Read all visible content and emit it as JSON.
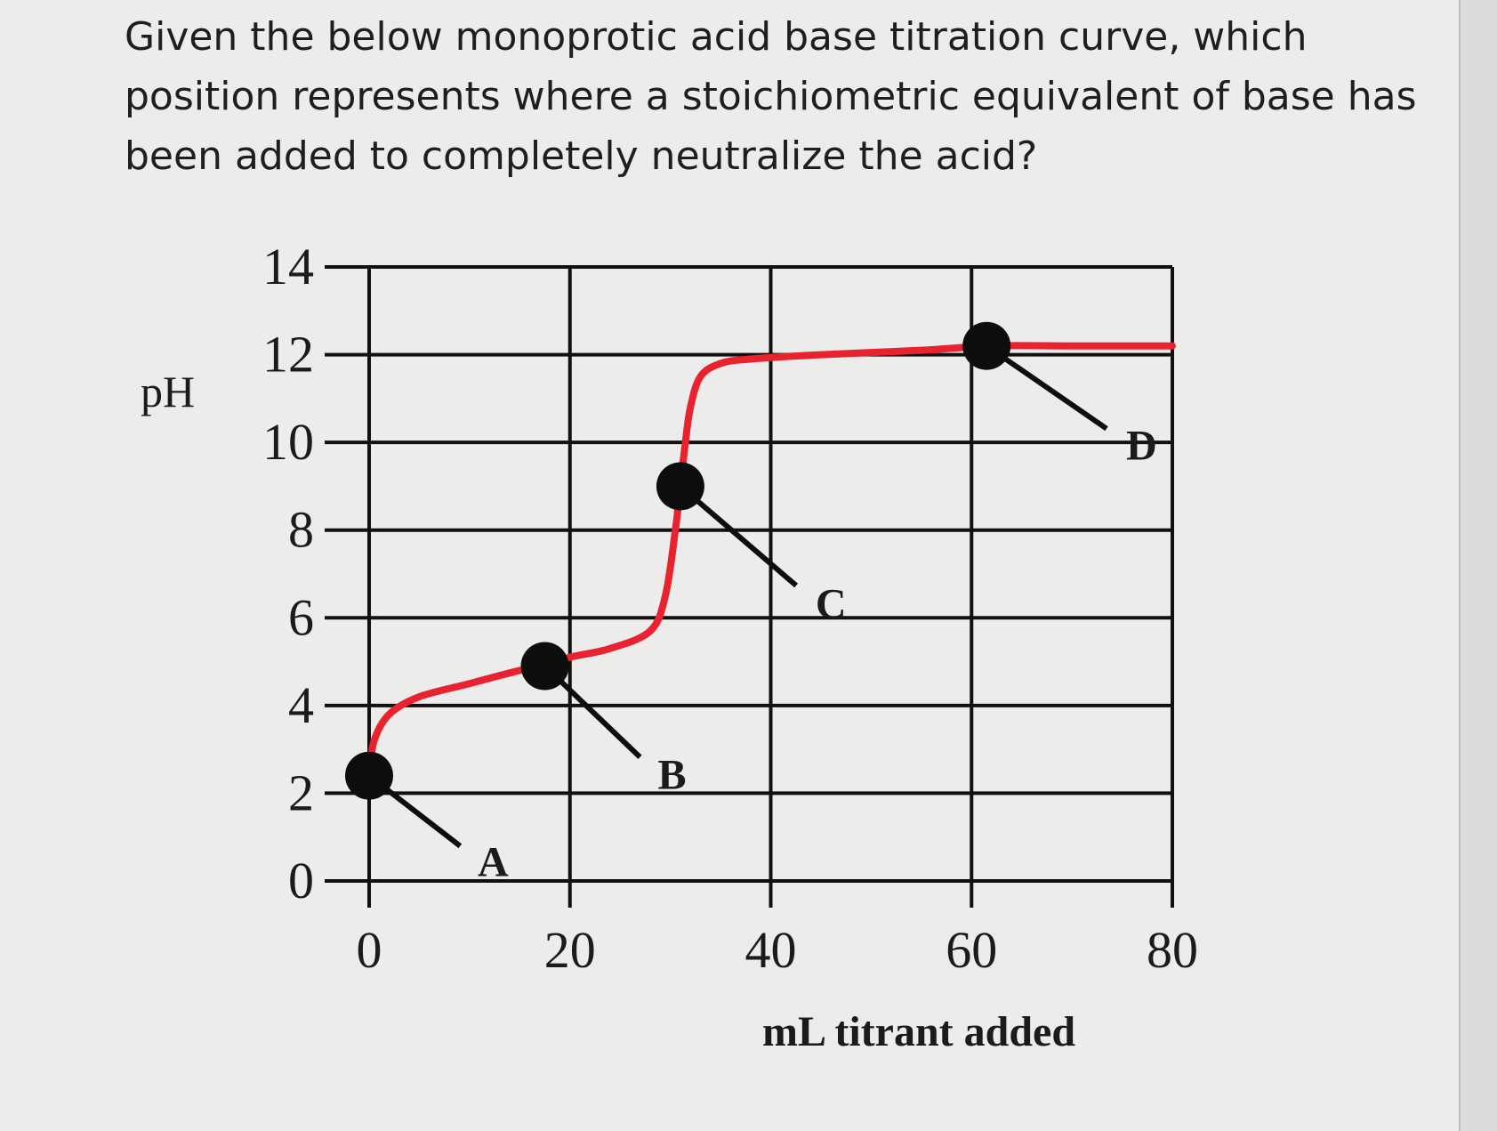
{
  "question": "Given the below monoprotic acid base titration curve, which position represents where a stoichiometric equivalent of base has been added to completely neutralize the acid?",
  "colors": {
    "curve": "#e8232f",
    "grid": "#111111",
    "point": "#0d0d0d",
    "background": "#ececeb"
  },
  "chart_data": {
    "type": "line",
    "title": "",
    "xlabel": "mL titrant added",
    "ylabel": "pH",
    "xlim": [
      0,
      80
    ],
    "ylim": [
      0,
      14
    ],
    "x_ticks": [
      0,
      20,
      40,
      60,
      80
    ],
    "y_ticks": [
      0,
      2,
      4,
      6,
      8,
      10,
      12,
      14
    ],
    "x_tick_labels": [
      "0",
      "20",
      "40",
      "60",
      "80"
    ],
    "y_tick_labels": [
      "0",
      "2",
      "4",
      "6",
      "8",
      "10",
      "12",
      "14"
    ],
    "grid": true,
    "series": [
      {
        "x": [
          0,
          0.5,
          2,
          5,
          10,
          15,
          17.5,
          20,
          24,
          28,
          29.5,
          30.5,
          31,
          31.5,
          32,
          33,
          35,
          38,
          45,
          55,
          62,
          70,
          80
        ],
        "y": [
          2.4,
          3.2,
          3.8,
          4.2,
          4.5,
          4.8,
          4.9,
          5.1,
          5.3,
          5.7,
          6.5,
          8.0,
          9.0,
          10.0,
          10.8,
          11.5,
          11.8,
          11.9,
          12.0,
          12.1,
          12.2,
          12.2,
          12.2
        ]
      }
    ],
    "points": [
      {
        "label": "A",
        "x": 0,
        "y": 2.4
      },
      {
        "label": "B",
        "x": 17.5,
        "y": 4.9
      },
      {
        "label": "C",
        "x": 31,
        "y": 9.0
      },
      {
        "label": "D",
        "x": 61.5,
        "y": 12.2
      }
    ]
  }
}
